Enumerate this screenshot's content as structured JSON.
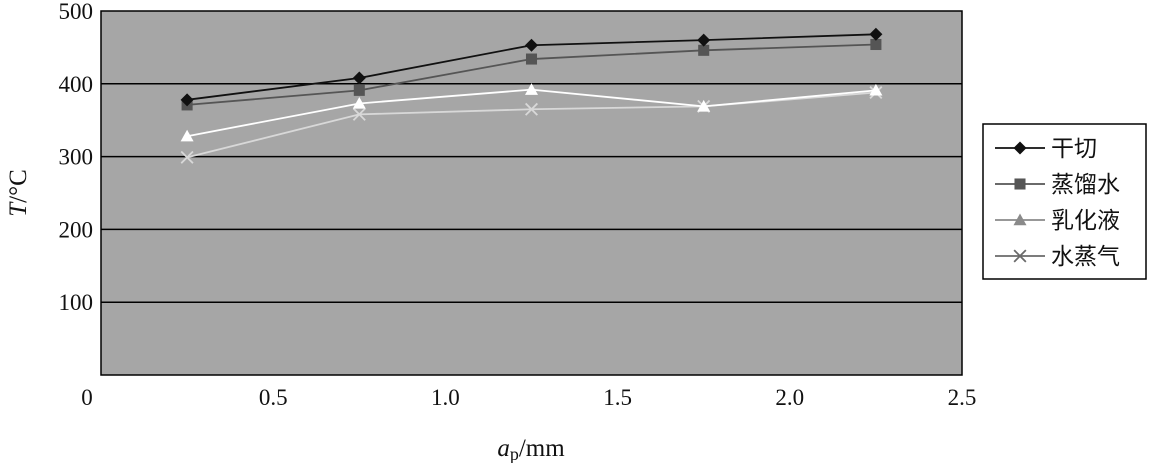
{
  "chart_data": {
    "type": "line",
    "title": "",
    "xlabel": {
      "main": "a",
      "sub": "p",
      "unit": "/mm"
    },
    "ylabel": {
      "main": "T",
      "unit": "/°C"
    },
    "xlim": [
      0,
      2.5
    ],
    "ylim": [
      0,
      500
    ],
    "x_ticks": [
      "0",
      "0.5",
      "1.0",
      "1.5",
      "2.0",
      "2.5"
    ],
    "x_tick_values": [
      0,
      0.5,
      1.0,
      1.5,
      2.0,
      2.5
    ],
    "y_ticks": [
      "100",
      "200",
      "300",
      "400",
      "500"
    ],
    "y_tick_values": [
      100,
      200,
      300,
      400,
      500
    ],
    "grid": "horizontal",
    "plot_background": "#a6a6a6",
    "legend_position": "right",
    "x": [
      0.25,
      0.75,
      1.25,
      1.75,
      2.25
    ],
    "series": [
      {
        "name": "干切",
        "marker": "diamond",
        "color": "#111111",
        "values": [
          378,
          408,
          453,
          460,
          468
        ]
      },
      {
        "name": "蒸馏水",
        "marker": "square",
        "color": "#555555",
        "values": [
          371,
          391,
          434,
          446,
          454
        ]
      },
      {
        "name": "乳化液",
        "marker": "triangle",
        "color": "#ffffff",
        "legend_color": "#8a8a8a",
        "values": [
          328,
          373,
          392,
          369,
          391
        ]
      },
      {
        "name": "水蒸气",
        "marker": "x",
        "color": "#d8d8d8",
        "legend_color": "#6a6a6a",
        "values": [
          299,
          358,
          365,
          369,
          388
        ]
      }
    ]
  }
}
